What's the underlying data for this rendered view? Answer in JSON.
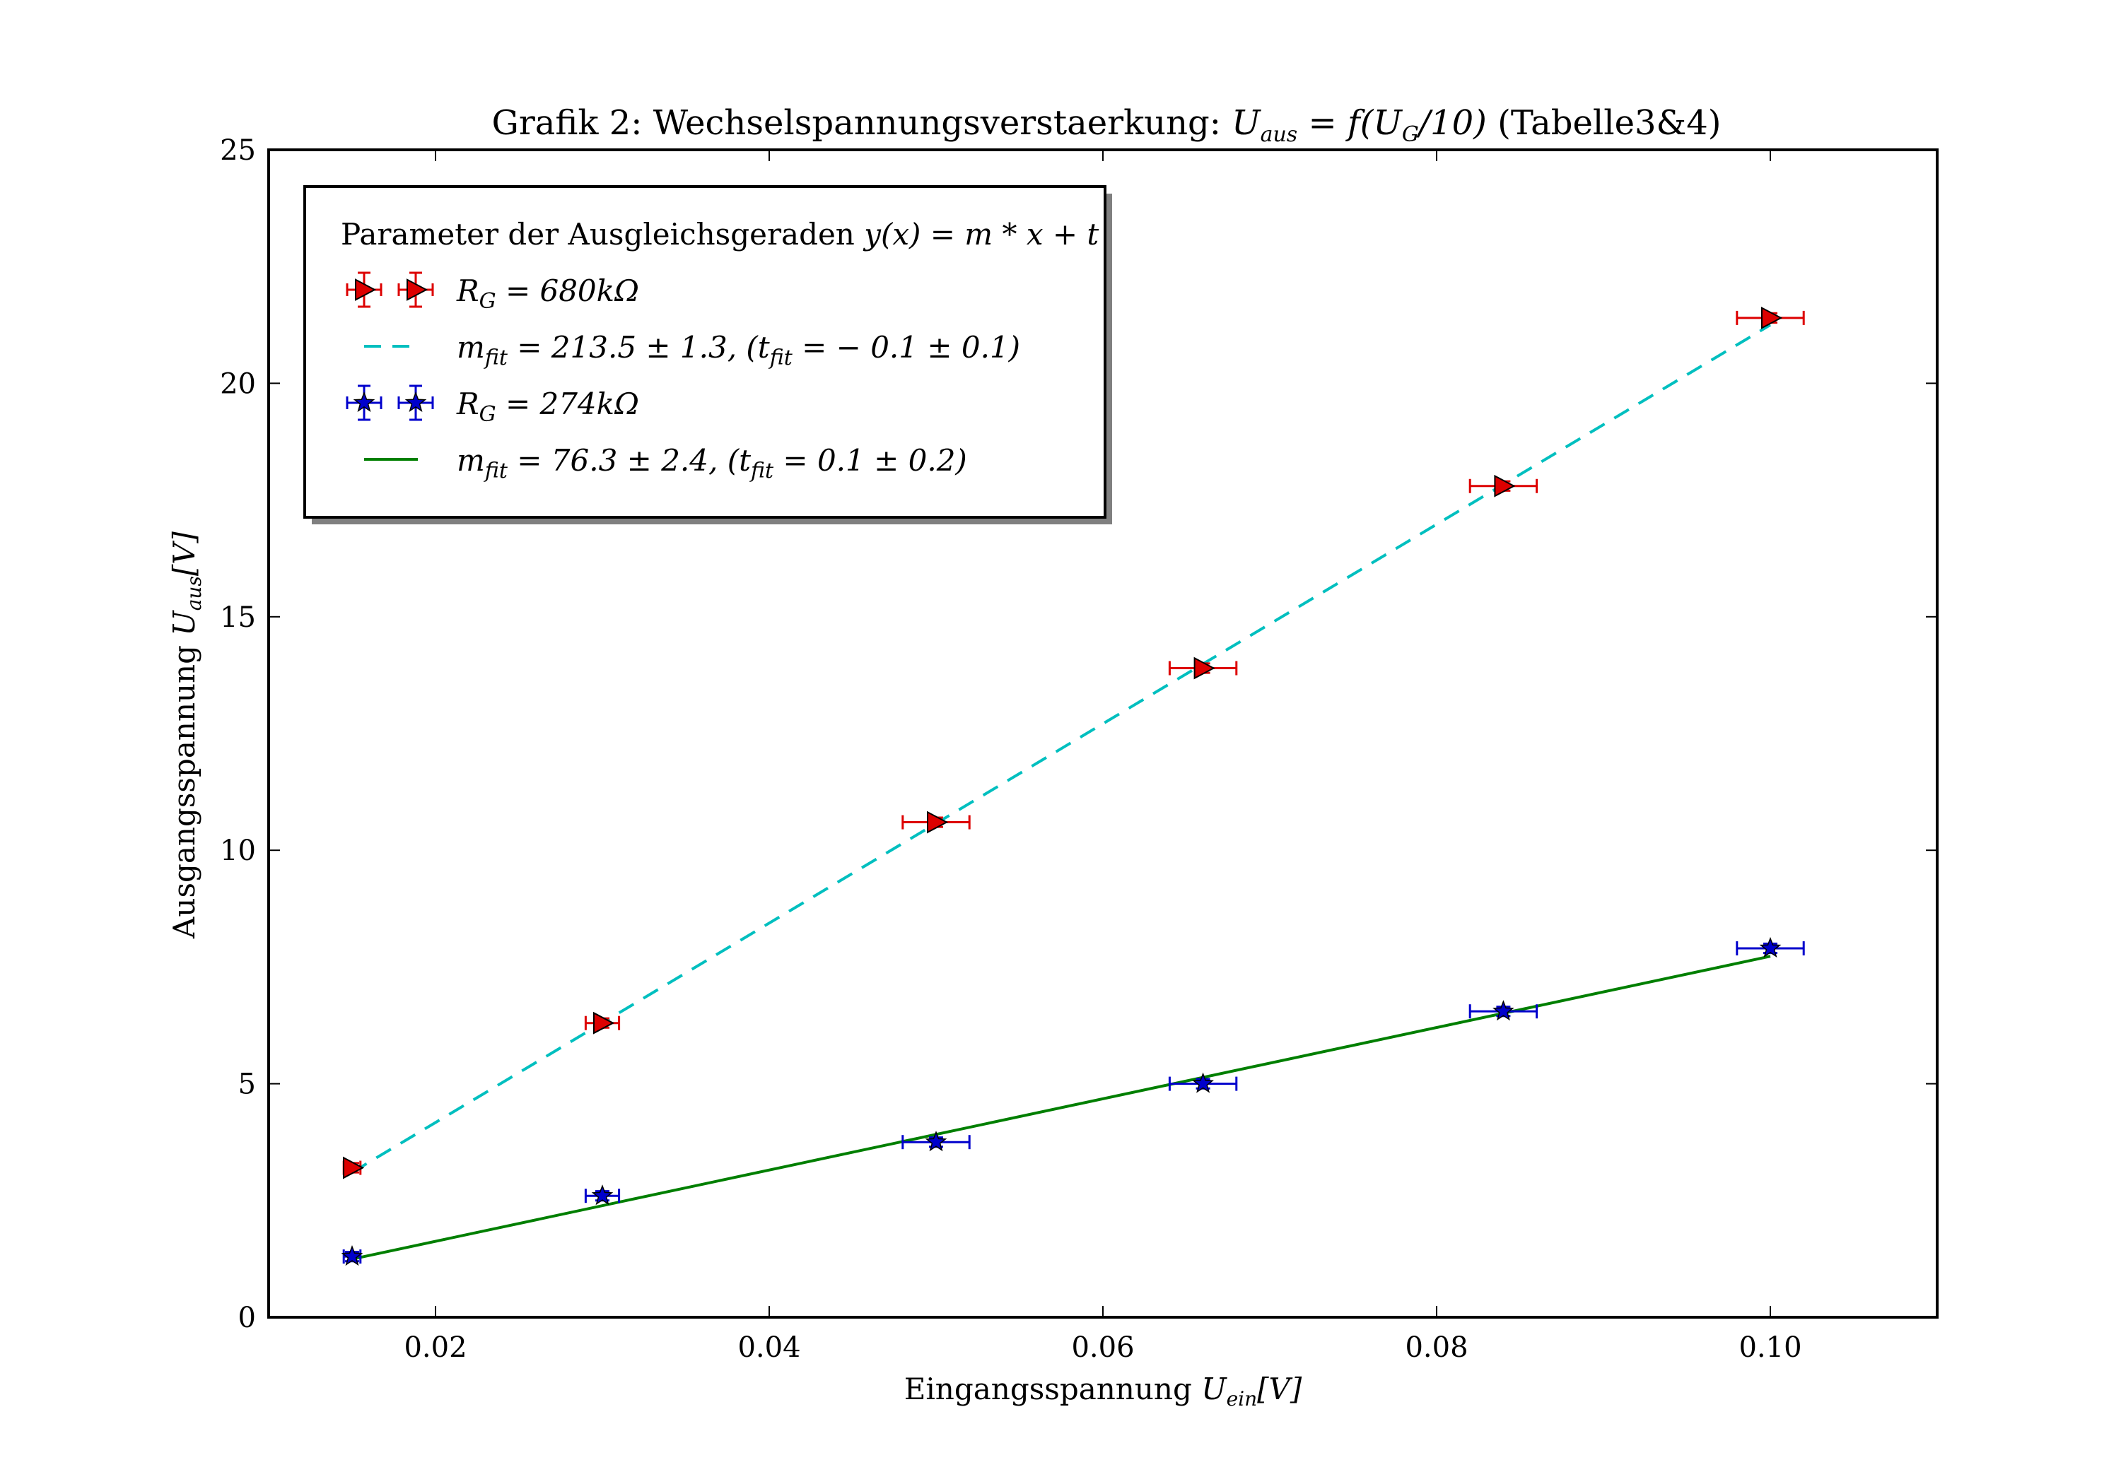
{
  "chart_data": {
    "type": "scatter",
    "title_prefix": "Grafik 2: Wechselspannungsverstaerkung: ",
    "title_math": "U",
    "title_math_sub": "aus",
    "title_math_rest": " = f(U",
    "title_math_sub2": "G",
    "title_math_rest2": "/10)",
    "title_suffix": " (Tabelle3&4)",
    "xlabel_text": "Eingangsspannung ",
    "xlabel_math": "U",
    "xlabel_math_sub": "ein",
    "xlabel_unit": "[V]",
    "ylabel_text": "Ausgangsspannung ",
    "ylabel_math": "U",
    "ylabel_math_sub": "aus",
    "ylabel_unit": "[V]",
    "xlim": [
      0.01,
      0.11
    ],
    "ylim": [
      0,
      25
    ],
    "xticks": [
      0.02,
      0.04,
      0.06,
      0.08,
      0.1
    ],
    "xtick_labels": [
      "0.02",
      "0.04",
      "0.06",
      "0.08",
      "0.10"
    ],
    "yticks": [
      0,
      5,
      10,
      15,
      20,
      25
    ],
    "ytick_labels": [
      "0",
      "5",
      "10",
      "15",
      "20",
      "25"
    ],
    "grid": false,
    "legend_position": "top-left",
    "legend_title_text": "Parameter der Ausgleichsgeraden ",
    "legend_title_math": "y(x) = m * x + t",
    "series": [
      {
        "name": "R_G = 680kΩ",
        "label_main": "R",
        "label_sub": "G",
        "label_rest": " = 680kΩ",
        "marker": "triangle-right",
        "color": "#dd0000",
        "edge_color": "#000000",
        "errorbar_color": "#dd0000",
        "x": [
          0.015,
          0.03,
          0.05,
          0.066,
          0.084,
          0.1
        ],
        "y": [
          3.2,
          6.3,
          10.6,
          13.9,
          17.8,
          21.4
        ],
        "xerr": [
          0.0005,
          0.001,
          0.002,
          0.002,
          0.002,
          0.002
        ],
        "yerr": [
          0.1,
          0.1,
          0.1,
          0.1,
          0.1,
          0.1
        ]
      },
      {
        "name": "R_G = 274kΩ",
        "label_main": "R",
        "label_sub": "G",
        "label_rest": " = 274kΩ",
        "marker": "star",
        "color": "#0000cc",
        "edge_color": "#000000",
        "errorbar_color": "#0000cc",
        "x": [
          0.015,
          0.03,
          0.05,
          0.066,
          0.084,
          0.1
        ],
        "y": [
          1.3,
          2.6,
          3.75,
          5.0,
          6.55,
          7.9
        ],
        "xerr": [
          0.0005,
          0.001,
          0.002,
          0.002,
          0.002,
          0.002
        ],
        "yerr": [
          0.1,
          0.1,
          0.1,
          0.1,
          0.1,
          0.1
        ]
      }
    ],
    "fits": [
      {
        "label_main": "m",
        "label_sub": "fit",
        "label_rest": " = 213.5 ± 1.3, (t",
        "label_sub2": "fit",
        "label_rest2": " = − 0.1 ± 0.1)",
        "style": "dashed",
        "color": "#00bfbf",
        "m": 213.5,
        "t": -0.1,
        "x_range": [
          0.015,
          0.1
        ]
      },
      {
        "label_main": "m",
        "label_sub": "fit",
        "label_rest": " = 76.3 ± 2.4, (t",
        "label_sub2": "fit",
        "label_rest2": " = 0.1 ± 0.2)",
        "style": "solid",
        "color": "#007f00",
        "m": 76.3,
        "t": 0.1,
        "x_range": [
          0.015,
          0.1
        ]
      }
    ]
  }
}
